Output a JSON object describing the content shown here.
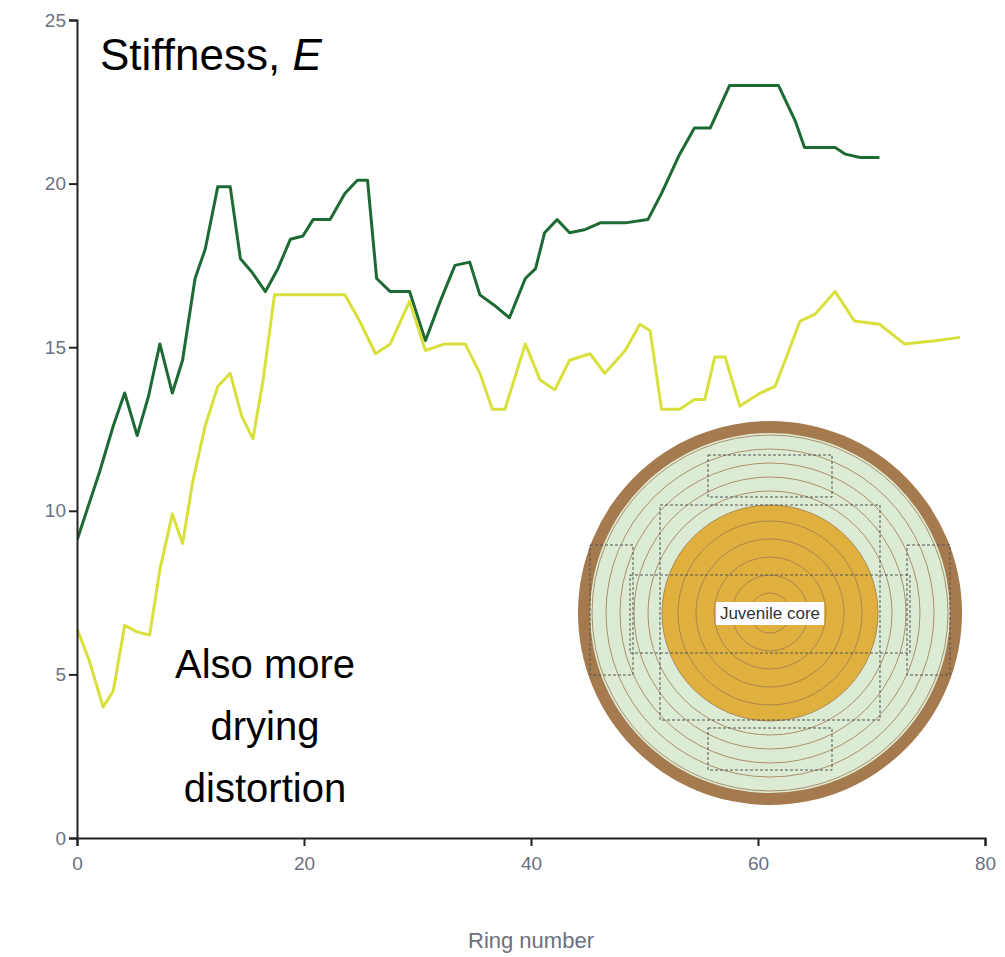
{
  "chart_data": {
    "type": "line",
    "title": "Stiffness, E",
    "x_label": "Ring number",
    "annotation": "Also more drying distortion",
    "inset": {
      "label": "Juvenile core"
    },
    "xlim": [
      0,
      80
    ],
    "xticks": [
      0,
      20,
      40,
      60,
      80
    ],
    "ylim": [
      0,
      25
    ],
    "yticks": [
      0,
      5,
      10,
      15,
      20,
      25
    ],
    "grid": false,
    "series": [
      {
        "color": "#1e6a34",
        "x": [
          0,
          2,
          3.2,
          4.2,
          5.3,
          6.3,
          7.3,
          8.4,
          9.3,
          10.4,
          11.3,
          12.4,
          13.5,
          14.4,
          15.4,
          16.6,
          17.7,
          18.8,
          19.9,
          20.8,
          22.3,
          23.6,
          24.7,
          25.6,
          26.4,
          27.6,
          29.3,
          30.7,
          32,
          33.3,
          34.6,
          35.5,
          36.7,
          38.1,
          39.5,
          40.4,
          41.2,
          42.3,
          43.4,
          44.8,
          46.1,
          48.3,
          50.3,
          51.5,
          53.1,
          54.4,
          55.8,
          57.5,
          60.2,
          61.8,
          63.3,
          64.1,
          65.9,
          66.8,
          67.7,
          69,
          70.7
        ],
        "values": [
          9.1,
          11.2,
          12.6,
          13.6,
          12.3,
          13.5,
          15.1,
          13.6,
          14.6,
          17.1,
          18,
          19.9,
          19.9,
          17.7,
          17.3,
          16.7,
          17.4,
          18.3,
          18.4,
          18.9,
          18.9,
          19.7,
          20.1,
          20.1,
          17.1,
          16.7,
          16.7,
          15.2,
          16.4,
          17.5,
          17.6,
          16.6,
          16.3,
          15.9,
          17.1,
          17.4,
          18.5,
          18.9,
          18.5,
          18.6,
          18.8,
          18.8,
          18.9,
          19.7,
          20.9,
          21.7,
          21.7,
          23,
          23,
          23,
          21.9,
          21.1,
          21.1,
          21.1,
          20.9,
          20.8,
          20.8
        ]
      },
      {
        "color": "#d8e03c",
        "x": [
          0,
          1.1,
          2.3,
          3.2,
          4.2,
          5.3,
          6.4,
          7.3,
          8.4,
          9.3,
          10.2,
          11.3,
          12.4,
          13.5,
          14.5,
          15.5,
          16.4,
          17.4,
          18.8,
          23.6,
          24.9,
          26.3,
          27.6,
          29.3,
          30.7,
          32.4,
          34.2,
          35.5,
          36.6,
          37.7,
          39.5,
          40.8,
          42.1,
          43.4,
          45.2,
          46.5,
          48.3,
          49.6,
          50.5,
          51.5,
          53.1,
          54.4,
          55.3,
          56.2,
          57.1,
          58.4,
          60.2,
          61.5,
          62.4,
          63.7,
          65,
          66.8,
          68.5,
          70.7,
          72.9,
          75.6,
          77.8
        ],
        "values": [
          6.4,
          5.4,
          4.0,
          4.5,
          6.5,
          6.3,
          6.2,
          8.2,
          9.9,
          9.0,
          10.9,
          12.6,
          13.8,
          14.2,
          12.9,
          12.2,
          14.0,
          16.6,
          16.6,
          16.6,
          15.8,
          14.8,
          15.1,
          16.4,
          14.9,
          15.1,
          15.1,
          14.2,
          13.1,
          13.1,
          15.1,
          14.0,
          13.7,
          14.6,
          14.8,
          14.2,
          14.9,
          15.7,
          15.5,
          13.1,
          13.1,
          13.4,
          13.4,
          14.7,
          14.7,
          13.2,
          13.6,
          13.8,
          14.6,
          15.8,
          16.0,
          16.7,
          15.8,
          15.7,
          15.1,
          15.2,
          15.3
        ]
      }
    ]
  }
}
